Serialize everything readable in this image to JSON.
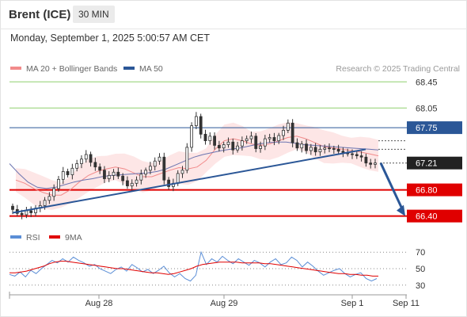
{
  "header": {
    "instrument": "Brent (ICE)",
    "interval": "30 MIN"
  },
  "timestamp": "Monday, September 1, 2025 5:00:57 AM CET",
  "legend": {
    "items": [
      {
        "label": "MA 20 + Bollinger Bands",
        "color": "#f28b8b"
      },
      {
        "label": "MA 50",
        "color": "#2b5797"
      }
    ],
    "credit": "Research © 2025 Trading Central"
  },
  "rsi_legend": {
    "items": [
      {
        "label": "RSI",
        "color": "#5b8ed6"
      },
      {
        "label": "9MA",
        "color": "#e00000"
      }
    ]
  },
  "colors": {
    "resistance_line": "#2b5797",
    "support_line": "#e00000",
    "target_line": "#8fcf6f",
    "current_price": "#222222",
    "bollinger_fill": "#fde3e3",
    "arrow": "#2b5797"
  },
  "chart_data": {
    "type": "candlestick",
    "price_axis": {
      "range": [
        66.25,
        68.55
      ],
      "levels": [
        {
          "value": 68.45,
          "label": "68.45",
          "style": "target"
        },
        {
          "value": 68.05,
          "label": "68.05",
          "style": "target"
        },
        {
          "value": 67.75,
          "label": "67.75",
          "style": "resistance"
        },
        {
          "value": 67.21,
          "label": "67.21",
          "style": "current"
        },
        {
          "value": 66.8,
          "label": "66.80",
          "style": "support"
        },
        {
          "value": 66.4,
          "label": "66.40",
          "style": "support"
        }
      ]
    },
    "x_axis": {
      "ticks": [
        "Aug 28",
        "Aug 29",
        "Sep 1",
        "Sep 11"
      ]
    },
    "trendline": {
      "from_price": 66.45,
      "to_price": 67.42
    },
    "forecast_arrow": {
      "from_price": 67.21,
      "to_price": 66.4
    },
    "price_series": {
      "name": "Price",
      "values": [
        66.5,
        66.44,
        66.42,
        66.48,
        66.45,
        66.52,
        66.56,
        66.64,
        66.7,
        66.82,
        66.96,
        67.08,
        67.03,
        67.13,
        67.2,
        67.27,
        67.34,
        67.22,
        67.15,
        67.1,
        66.97,
        67.02,
        67.07,
        67.01,
        66.94,
        66.86,
        66.9,
        66.95,
        67.04,
        67.1,
        67.16,
        67.24,
        67.3,
        66.95,
        66.85,
        66.9,
        67.05,
        67.1,
        67.45,
        67.78,
        67.92,
        67.65,
        67.55,
        67.62,
        67.48,
        67.44,
        67.49,
        67.53,
        67.41,
        67.47,
        67.55,
        67.58,
        67.62,
        67.43,
        67.47,
        67.58,
        67.6,
        67.55,
        67.63,
        67.71,
        67.82,
        67.52,
        67.44,
        67.5,
        67.4,
        67.45,
        67.38,
        67.42,
        67.44,
        67.43,
        67.42,
        67.39,
        67.37,
        67.35,
        67.34,
        67.32,
        67.3,
        67.21,
        67.19,
        67.21
      ]
    },
    "ma20": {
      "name": "MA 20",
      "values": [
        66.95,
        66.9,
        66.82,
        66.76,
        66.72,
        66.72,
        66.8,
        66.92,
        67.02,
        67.08,
        67.12,
        67.15,
        67.12,
        67.06,
        67.0,
        67.0,
        67.05,
        67.1,
        67.14,
        67.12,
        67.15,
        67.25,
        67.42,
        67.55,
        67.58,
        67.55,
        67.5,
        67.48,
        67.5,
        67.55,
        67.6,
        67.62,
        67.58,
        67.52,
        67.46,
        67.44,
        67.42,
        67.4,
        67.38,
        67.35,
        67.32
      ]
    },
    "ma50": {
      "name": "MA 50",
      "values": [
        67.2,
        67.05,
        66.92,
        66.84,
        66.82,
        66.84,
        66.88,
        66.92,
        66.95,
        66.97,
        67.0,
        67.02,
        67.03,
        67.04,
        67.05,
        67.06,
        67.08,
        67.12,
        67.18,
        67.24,
        67.3,
        67.34,
        67.37,
        67.4,
        67.42,
        67.44,
        67.47,
        67.5,
        67.52,
        67.53,
        67.53,
        67.51,
        67.49,
        67.48,
        67.47,
        67.46,
        67.45,
        67.44,
        67.43,
        67.42,
        67.41
      ]
    },
    "rsi": {
      "axis": {
        "range": [
          25,
          75
        ],
        "ticks": [
          70,
          50,
          30
        ]
      },
      "rsi_values": [
        43,
        41,
        46,
        40,
        48,
        44,
        50,
        55,
        60,
        57,
        62,
        58,
        64,
        60,
        57,
        53,
        55,
        50,
        47,
        44,
        49,
        52,
        47,
        55,
        51,
        46,
        49,
        44,
        48,
        53,
        45,
        40,
        44,
        38,
        35,
        42,
        70,
        55,
        62,
        58,
        65,
        60,
        56,
        62,
        58,
        54,
        60,
        57,
        52,
        58,
        62,
        55,
        57,
        64,
        60,
        52,
        58,
        53,
        47,
        42,
        45,
        48,
        50,
        44,
        40,
        43,
        45,
        38,
        35,
        38
      ],
      "ma_values": [
        45,
        45,
        46,
        47,
        49,
        51,
        53,
        56,
        58,
        59,
        59,
        58,
        57,
        56,
        55,
        54,
        53,
        52,
        51,
        50,
        50,
        49,
        48,
        47,
        46,
        45,
        45,
        44,
        43,
        44,
        46,
        48,
        50,
        53,
        55,
        56,
        57,
        58,
        58,
        58,
        58,
        57,
        57,
        57,
        57,
        56,
        56,
        55,
        54,
        53,
        52,
        51,
        50,
        49,
        48,
        47,
        46,
        45,
        44,
        44,
        43,
        43,
        42,
        42,
        41,
        41
      ]
    }
  }
}
